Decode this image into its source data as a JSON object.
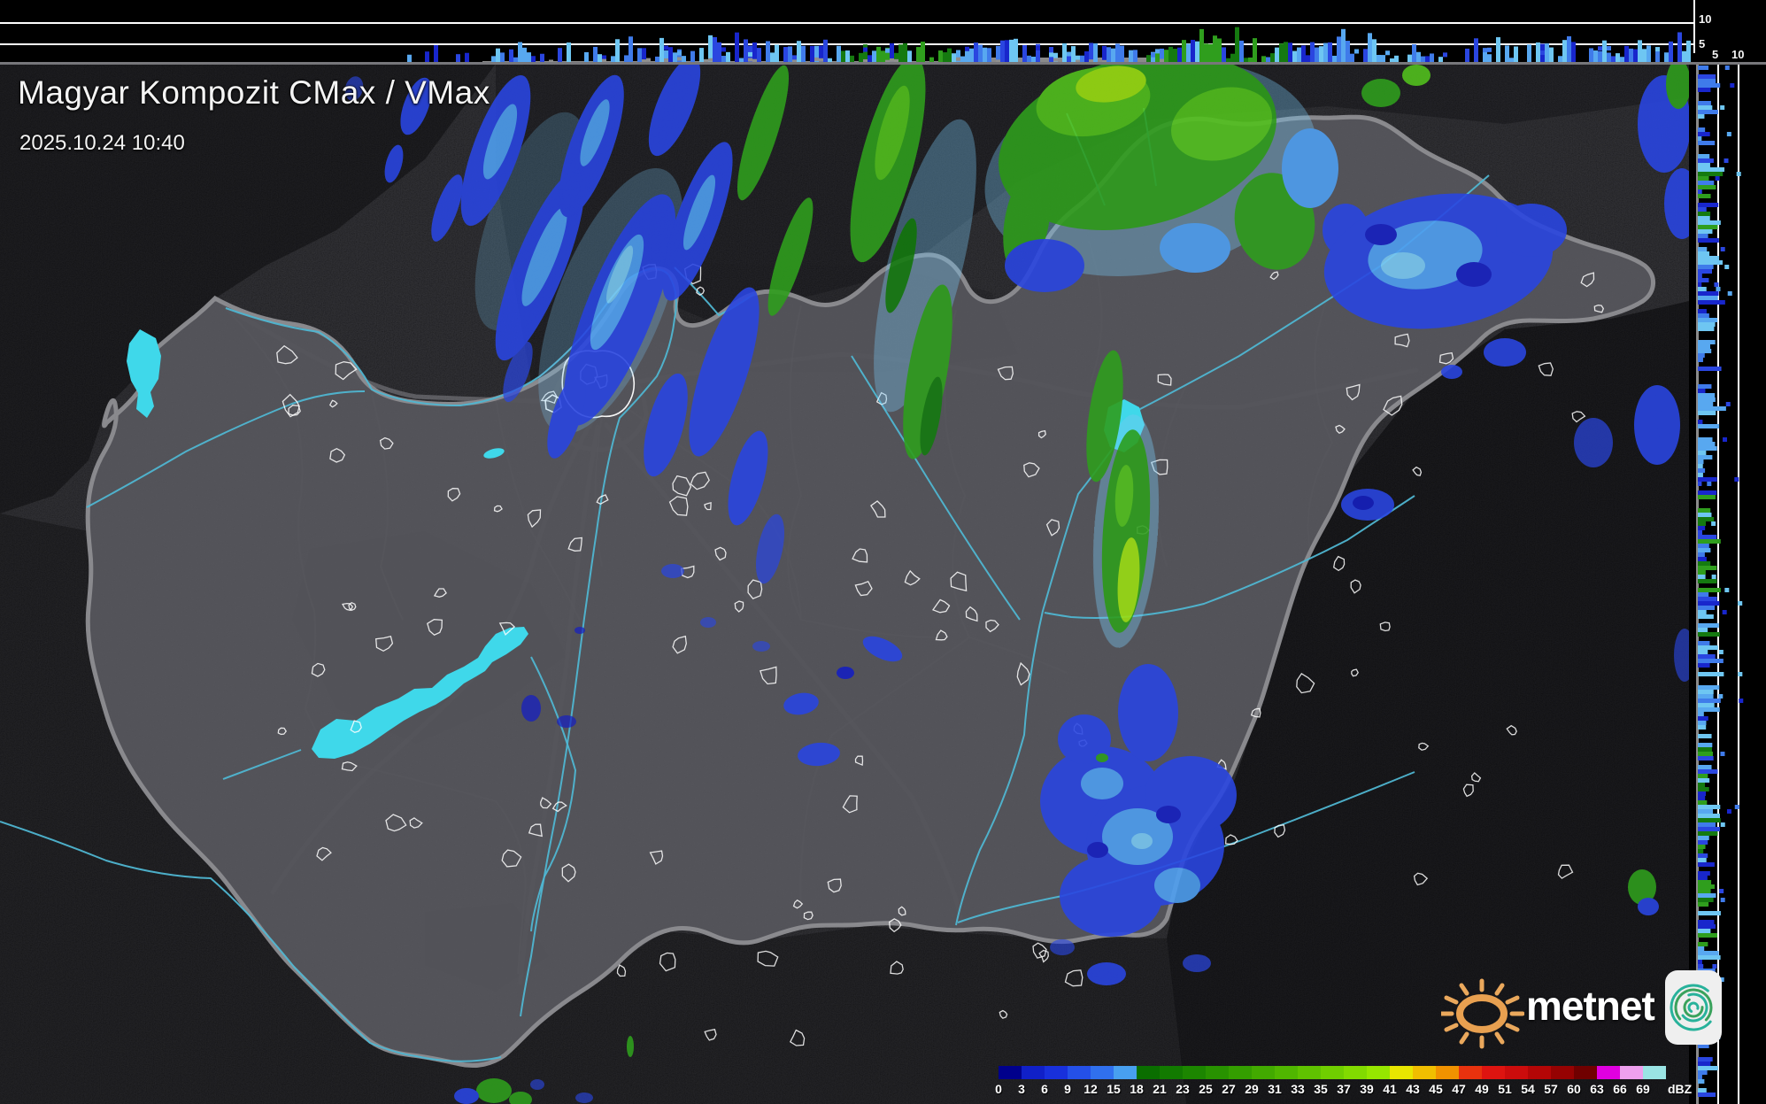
{
  "header": {
    "title": "Magyar Kompozit CMax / VMax",
    "timestamp": "2025.10.24 10:40"
  },
  "profile_axes": {
    "top_km_10": "10",
    "top_km_5": "5",
    "right_km_5": "5",
    "right_km_10": "10"
  },
  "scale": {
    "unit_label": "dBZ",
    "ticks": [
      "0",
      "3",
      "6",
      "9",
      "12",
      "15",
      "18",
      "21",
      "23",
      "25",
      "27",
      "29",
      "31",
      "33",
      "35",
      "37",
      "39",
      "41",
      "43",
      "45",
      "47",
      "49",
      "51",
      "54",
      "57",
      "60",
      "63",
      "66",
      "69"
    ],
    "colors": [
      "#00008c",
      "#1020c8",
      "#1830dc",
      "#2450e8",
      "#3070ee",
      "#48a0f0",
      "#0a6e00",
      "#127a00",
      "#1c8600",
      "#289200",
      "#349e00",
      "#42aa00",
      "#50b600",
      "#60c200",
      "#70ce00",
      "#82da00",
      "#96e600",
      "#e8e600",
      "#f0be00",
      "#f09200",
      "#e8320e",
      "#de1410",
      "#cc0c0c",
      "#b40606",
      "#960202",
      "#700000",
      "#e000e0",
      "#eea0ee",
      "#9ae4e4"
    ]
  },
  "logo": {
    "text": "metnet",
    "sun_color": "#e8a050",
    "spiral_colors": [
      "#28b29b",
      "#3aa25c"
    ]
  },
  "palette": {
    "echo_blues": [
      "#1826cc",
      "#2a46e0",
      "#3f7bea",
      "#58a8f0",
      "#6ec6f2"
    ],
    "echo_greens": [
      "#157a10",
      "#2f9e1d"
    ],
    "lake_cyan": "#3fd8ea",
    "river_cyan": "#4fb6d2",
    "country_border_gray": "#8e8e92",
    "settlement_outline": "#ffffff",
    "profile_gridline": "#ffffff",
    "profile_baseline": "#8f8f8f"
  }
}
